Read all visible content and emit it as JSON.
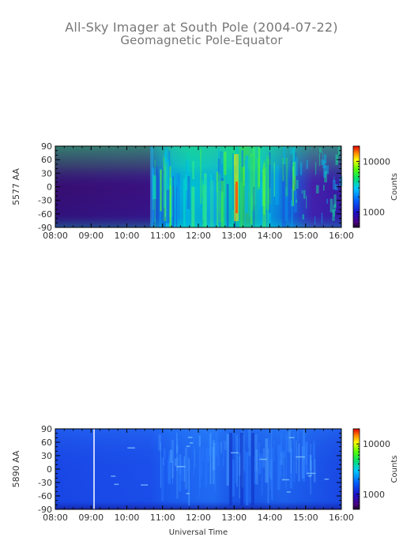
{
  "title": "All-Sky Imager at South Pole (2004-07-22)",
  "subtitle": "Geomagnetic Pole-Equator",
  "xlabel": "Universal Time",
  "colors": {
    "background": "#ffffff",
    "text": "#333333",
    "title": "#777777",
    "frame": "#000000"
  },
  "chart_data": [
    {
      "type": "heatmap",
      "ylabel": "5577 AA",
      "xlim": [
        "08:00",
        "16:00"
      ],
      "ylim": [
        -90,
        90
      ],
      "xticks": [
        "08:00",
        "09:00",
        "10:00",
        "11:00",
        "12:00",
        "13:00",
        "14:00",
        "15:00",
        "16:00"
      ],
      "yticks": [
        90,
        60,
        30,
        0,
        -30,
        -60,
        -90
      ],
      "colorbar": {
        "label": "Counts",
        "scale": "log",
        "ticks": [
          1000,
          10000
        ],
        "tick_labels": [
          "1000",
          "10000"
        ],
        "colormap": "rainbow"
      },
      "features": [
        {
          "from": "08:00",
          "to": "10:45",
          "description": "low counts"
        },
        {
          "from": "10:45",
          "to": "14:30",
          "description": "high counts, peak near 13:00"
        },
        {
          "from": "14:30",
          "to": "16:00",
          "description": "moderate counts"
        }
      ]
    },
    {
      "type": "heatmap",
      "ylabel": "5890 AA",
      "xlim": [
        "08:00",
        "16:00"
      ],
      "ylim": [
        -90,
        90
      ],
      "xticks": [
        "08:00",
        "09:00",
        "10:00",
        "11:00",
        "12:00",
        "13:00",
        "14:00",
        "15:00",
        "16:00"
      ],
      "yticks": [
        90,
        60,
        30,
        0,
        -30,
        -60,
        -90
      ],
      "colorbar": {
        "label": "Counts",
        "scale": "log",
        "ticks": [
          1000,
          10000
        ],
        "tick_labels": [
          "1000",
          "10000"
        ],
        "colormap": "rainbow"
      },
      "features": [
        {
          "at": "09:10",
          "description": "white vertical line"
        },
        {
          "from": "10:45",
          "to": "15:30",
          "description": "slightly higher counts, band near 13:00"
        }
      ]
    }
  ]
}
